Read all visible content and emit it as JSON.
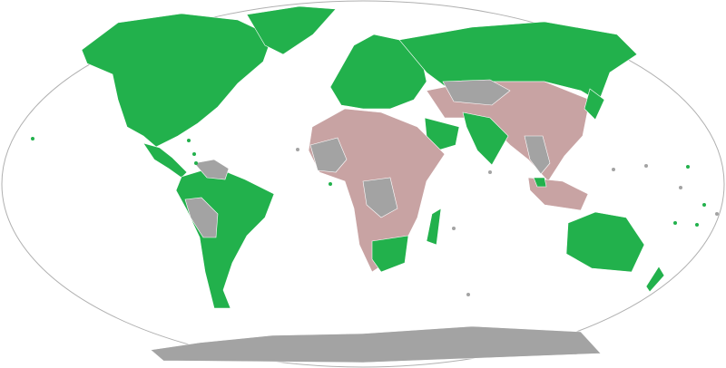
{
  "map": {
    "colors": {
      "green": "#22b14c",
      "pink": "#c8a3a3",
      "gray": "#a3a3a3",
      "outline": "#b0b0b0",
      "background": "#ffffff",
      "border": "#ffffff"
    }
  }
}
